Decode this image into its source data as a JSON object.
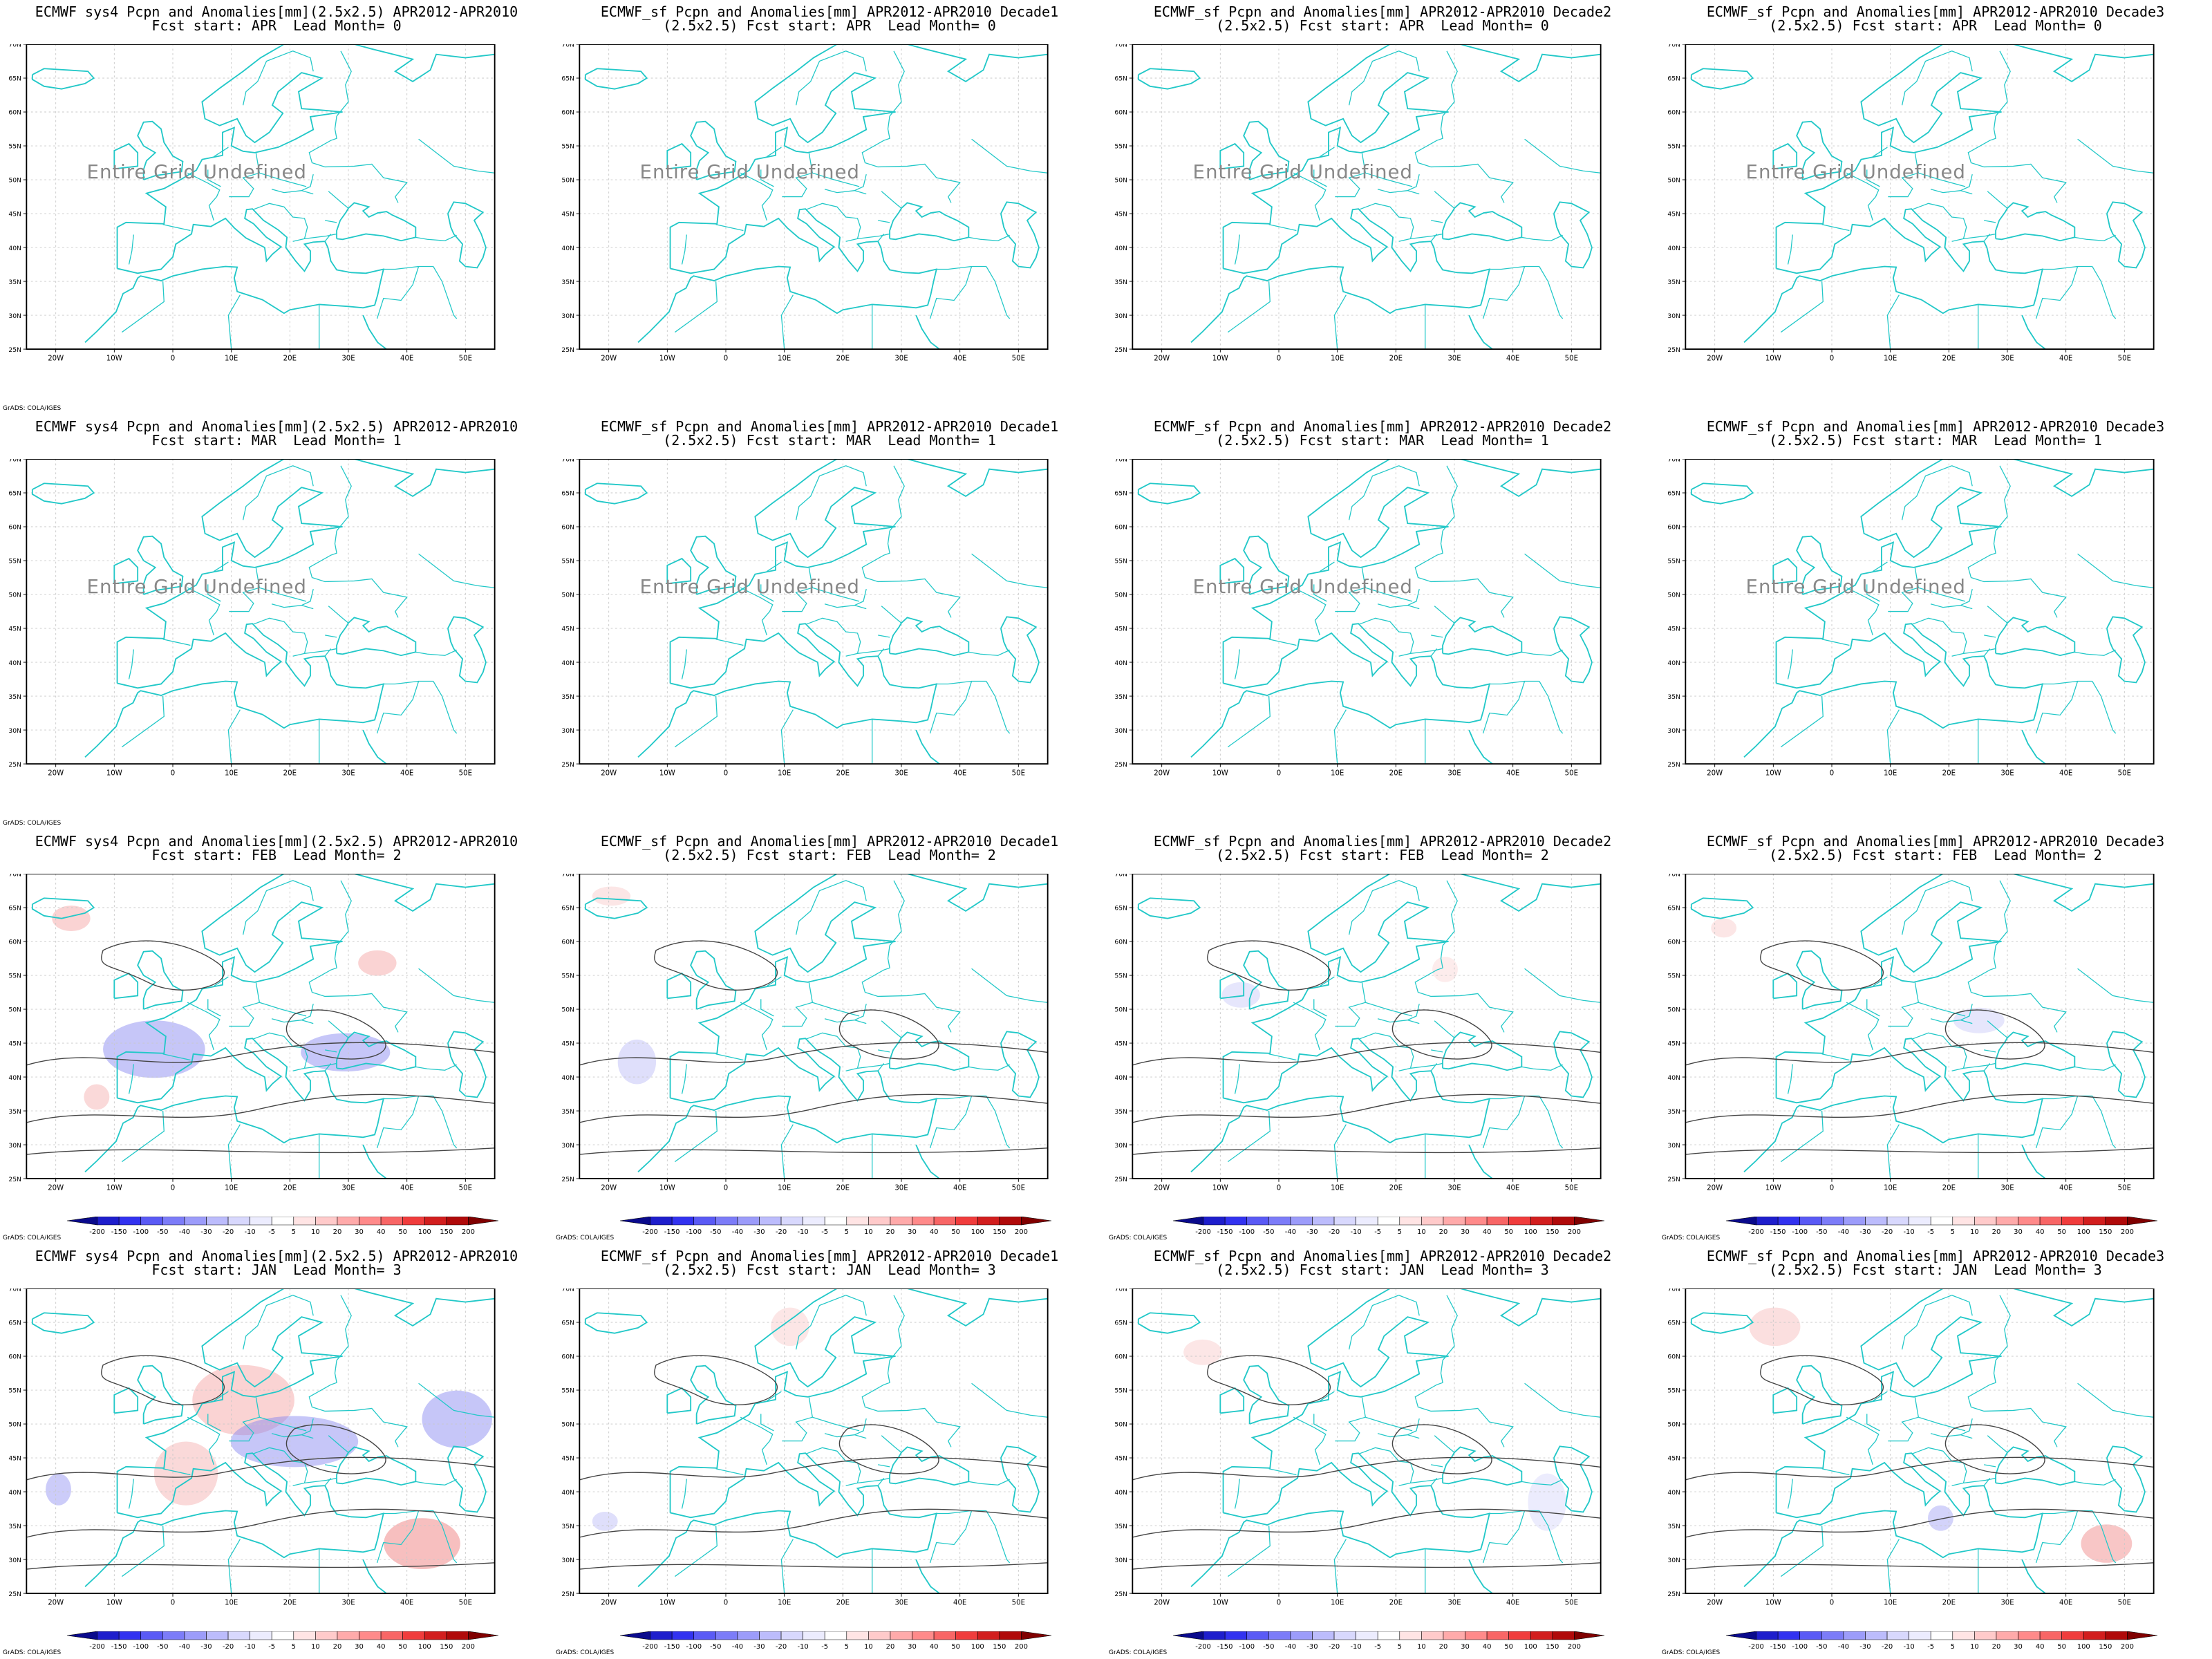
{
  "panels": [
    {
      "t1": "ECMWF sys4 Pcpn and Anomalies[mm](2.5x2.5) APR2012-APR2010",
      "t2": "Fcst start: APR  Lead Month= 0",
      "undef": true,
      "colorbar": false,
      "credit": "GrADS: COLA/IGES",
      "undef_text": "Entire Grid Undefined"
    },
    {
      "t1": "ECMWF_sf Pcpn and Anomalies[mm] APR2012-APR2010 Decade1",
      "t2": "(2.5x2.5) Fcst start: APR  Lead Month= 0",
      "undef": true,
      "colorbar": false,
      "credit": "",
      "undef_text": "Entire Grid Undefined"
    },
    {
      "t1": "ECMWF_sf Pcpn and Anomalies[mm] APR2012-APR2010 Decade2",
      "t2": "(2.5x2.5) Fcst start: APR  Lead Month= 0",
      "undef": true,
      "colorbar": false,
      "credit": "",
      "undef_text": "Entire Grid Undefined"
    },
    {
      "t1": "ECMWF_sf Pcpn and Anomalies[mm] APR2012-APR2010 Decade3",
      "t2": "(2.5x2.5) Fcst start: APR  Lead Month= 0",
      "undef": true,
      "colorbar": false,
      "credit": "",
      "undef_text": "Entire Grid Undefined"
    },
    {
      "t1": "ECMWF sys4 Pcpn and Anomalies[mm](2.5x2.5) APR2012-APR2010",
      "t2": "Fcst start: MAR  Lead Month= 1",
      "undef": true,
      "colorbar": false,
      "credit": "GrADS: COLA/IGES",
      "undef_text": "Entire Grid Undefined"
    },
    {
      "t1": "ECMWF_sf Pcpn and Anomalies[mm] APR2012-APR2010 Decade1",
      "t2": "(2.5x2.5) Fcst start: MAR  Lead Month= 1",
      "undef": true,
      "colorbar": false,
      "credit": "",
      "undef_text": "Entire Grid Undefined"
    },
    {
      "t1": "ECMWF_sf Pcpn and Anomalies[mm] APR2012-APR2010 Decade2",
      "t2": "(2.5x2.5) Fcst start: MAR  Lead Month= 1",
      "undef": true,
      "colorbar": false,
      "credit": "",
      "undef_text": "Entire Grid Undefined"
    },
    {
      "t1": "ECMWF_sf Pcpn and Anomalies[mm] APR2012-APR2010 Decade3",
      "t2": "(2.5x2.5) Fcst start: MAR  Lead Month= 1",
      "undef": true,
      "colorbar": false,
      "credit": "",
      "undef_text": "Entire Grid Undefined"
    },
    {
      "t1": "ECMWF sys4 Pcpn and Anomalies[mm](2.5x2.5) APR2012-APR2010",
      "t2": "Fcst start: FEB  Lead Month= 2",
      "undef": false,
      "colorbar": true,
      "credit": "GrADS: COLA/IGES",
      "undef_text": ""
    },
    {
      "t1": "ECMWF_sf Pcpn and Anomalies[mm] APR2012-APR2010 Decade1",
      "t2": "(2.5x2.5) Fcst start: FEB  Lead Month= 2",
      "undef": false,
      "colorbar": true,
      "credit": "GrADS: COLA/IGES",
      "undef_text": ""
    },
    {
      "t1": "ECMWF_sf Pcpn and Anomalies[mm] APR2012-APR2010 Decade2",
      "t2": "(2.5x2.5) Fcst start: FEB  Lead Month= 2",
      "undef": false,
      "colorbar": true,
      "credit": "GrADS: COLA/IGES",
      "undef_text": ""
    },
    {
      "t1": "ECMWF_sf Pcpn and Anomalies[mm] APR2012-APR2010 Decade3",
      "t2": "(2.5x2.5) Fcst start: FEB  Lead Month= 2",
      "undef": false,
      "colorbar": true,
      "credit": "GrADS: COLA/IGES",
      "undef_text": ""
    },
    {
      "t1": "ECMWF sys4 Pcpn and Anomalies[mm](2.5x2.5) APR2012-APR2010",
      "t2": "Fcst start: JAN  Lead Month= 3",
      "undef": false,
      "colorbar": true,
      "credit": "GrADS: COLA/IGES",
      "undef_text": ""
    },
    {
      "t1": "ECMWF_sf Pcpn and Anomalies[mm] APR2012-APR2010 Decade1",
      "t2": "(2.5x2.5) Fcst start: JAN  Lead Month= 3",
      "undef": false,
      "colorbar": true,
      "credit": "GrADS: COLA/IGES",
      "undef_text": ""
    },
    {
      "t1": "ECMWF_sf Pcpn and Anomalies[mm] APR2012-APR2010 Decade2",
      "t2": "(2.5x2.5) Fcst start: JAN  Lead Month= 3",
      "undef": false,
      "colorbar": true,
      "credit": "GrADS: COLA/IGES",
      "undef_text": ""
    },
    {
      "t1": "ECMWF_sf Pcpn and Anomalies[mm] APR2012-APR2010 Decade3",
      "t2": "(2.5x2.5) Fcst start: JAN  Lead Month= 3",
      "undef": false,
      "colorbar": true,
      "credit": "GrADS: COLA/IGES",
      "undef_text": ""
    }
  ],
  "axes": {
    "lon_labels": [
      "20W",
      "10W",
      "0",
      "10E",
      "20E",
      "30E",
      "40E",
      "50E"
    ],
    "lat_labels": [
      "70N",
      "65N",
      "60N",
      "55N",
      "50N",
      "45N",
      "40N",
      "35N",
      "30N",
      "25N"
    ]
  },
  "colorbar": {
    "labels": [
      "-200",
      "-150",
      "-100",
      "-50",
      "-40",
      "-30",
      "-20",
      "-10",
      "-5",
      "5",
      "10",
      "20",
      "30",
      "40",
      "50",
      "100",
      "150",
      "200"
    ],
    "colors": [
      "#0a0a8c",
      "#1e1ecc",
      "#3232f0",
      "#5a5af5",
      "#7c7cf8",
      "#9c9cfa",
      "#bcbcfc",
      "#d8d8fd",
      "#ececfe",
      "#ffffff",
      "#ffe4e4",
      "#ffcaca",
      "#ffaaaa",
      "#ff8a8a",
      "#f86666",
      "#f03c3c",
      "#d21e1e",
      "#b00a0a",
      "#800000"
    ]
  },
  "colors": {
    "coast": "#22c8c8",
    "contour": "#444444",
    "grid": "#c8c8c8",
    "neg_anomaly": "#8080f0",
    "pos_anomaly": "#f08080"
  }
}
